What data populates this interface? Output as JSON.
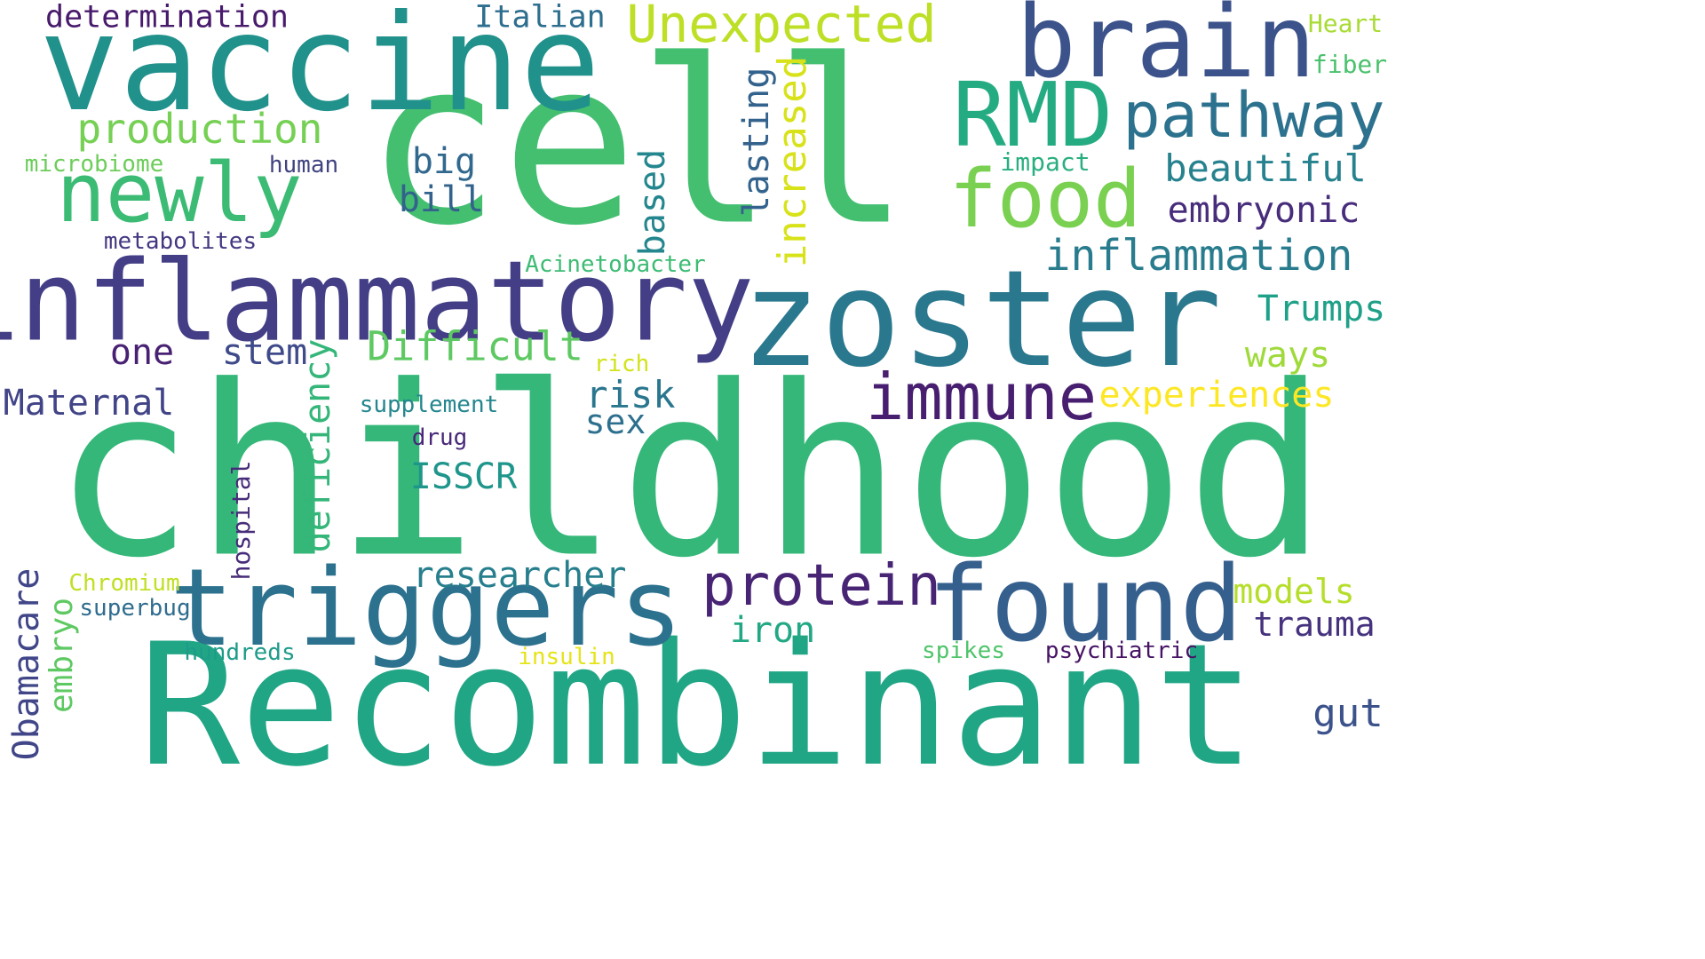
{
  "words": {
    "childhood": {
      "text": "childhood",
      "color": "#35b779"
    },
    "cell": {
      "text": "cell",
      "color": "#44bf70"
    },
    "recombinant": {
      "text": "Recombinant",
      "color": "#21a685"
    },
    "zoster": {
      "text": "zoster",
      "color": "#2a788e"
    },
    "vaccine": {
      "text": "vaccine",
      "color": "#21918c"
    },
    "inflammatory": {
      "text": "inflammatory",
      "color": "#433e85"
    },
    "triggers": {
      "text": "triggers",
      "color": "#2c728e"
    },
    "found": {
      "text": "found",
      "color": "#355f8d"
    },
    "brain": {
      "text": "brain",
      "color": "#3b528b"
    },
    "newly": {
      "text": "newly",
      "color": "#3cbb75"
    },
    "rmd": {
      "text": "RMD",
      "color": "#25ab82"
    },
    "food": {
      "text": "food",
      "color": "#7ad151"
    },
    "pathway": {
      "text": "pathway",
      "color": "#2c728e"
    },
    "immune": {
      "text": "immune",
      "color": "#481f70"
    },
    "protein": {
      "text": "protein",
      "color": "#482475"
    },
    "unexpected": {
      "text": "Unexpected",
      "color": "#bddf26"
    },
    "production": {
      "text": "production",
      "color": "#75d054"
    },
    "inflammation": {
      "text": "inflammation",
      "color": "#287c8e"
    },
    "beautiful": {
      "text": "beautiful",
      "color": "#26828e"
    },
    "embryonic": {
      "text": "embryonic",
      "color": "#472d7b"
    },
    "difficult": {
      "text": "Difficult",
      "color": "#5ec962"
    },
    "experiences": {
      "text": "experiences",
      "color": "#fde725"
    },
    "trumps": {
      "text": "Trumps",
      "color": "#1fa088"
    },
    "ways": {
      "text": "ways",
      "color": "#9fda3a"
    },
    "maternal": {
      "text": "Maternal",
      "color": "#414487"
    },
    "researcher": {
      "text": "researcher",
      "color": "#277f8e"
    },
    "risk": {
      "text": "risk",
      "color": "#2a768e"
    },
    "sex": {
      "text": "sex",
      "color": "#2d708e"
    },
    "big": {
      "text": "big",
      "color": "#31688e"
    },
    "bill": {
      "text": "bill",
      "color": "#33638d"
    },
    "isscr": {
      "text": "ISSCR",
      "color": "#1f968b"
    },
    "one": {
      "text": "one",
      "color": "#482173"
    },
    "stem": {
      "text": "stem",
      "color": "#3e4a89"
    },
    "models": {
      "text": "models",
      "color": "#b5de2b"
    },
    "trauma": {
      "text": "trauma",
      "color": "#46327e"
    },
    "gut": {
      "text": "gut",
      "color": "#3b528b"
    },
    "iron": {
      "text": "iron",
      "color": "#22a884"
    },
    "determination": {
      "text": "determination",
      "color": "#481a6c"
    },
    "italian": {
      "text": "Italian",
      "color": "#2e6e8e"
    },
    "heart": {
      "text": "Heart",
      "color": "#a8db34"
    },
    "fiber": {
      "text": "fiber",
      "color": "#4ac16d"
    },
    "impact": {
      "text": "impact",
      "color": "#29af7f"
    },
    "microbiome": {
      "text": "microbiome",
      "color": "#6ccd5a"
    },
    "human": {
      "text": "human",
      "color": "#40437f"
    },
    "metabolites": {
      "text": "metabolites",
      "color": "#453882"
    },
    "acinetobacter": {
      "text": "Acinetobacter",
      "color": "#3dbc74"
    },
    "rich": {
      "text": "rich",
      "color": "#d2e21b"
    },
    "supplement": {
      "text": "supplement",
      "color": "#24868e"
    },
    "drug": {
      "text": "drug",
      "color": "#482878"
    },
    "chromium": {
      "text": "Chromium",
      "color": "#c2df23"
    },
    "superbug": {
      "text": "superbug",
      "color": "#2f6c8e"
    },
    "hundreds": {
      "text": "hundreds",
      "color": "#1e9b8a"
    },
    "insulin": {
      "text": "insulin",
      "color": "#e5e419"
    },
    "spikes": {
      "text": "spikes",
      "color": "#4fc46a"
    },
    "psychiatric": {
      "text": "psychiatric",
      "color": "#471365"
    },
    "increased": {
      "text": "increased",
      "color": "#d8e219"
    },
    "lasting": {
      "text": "lasting",
      "color": "#33638d"
    },
    "based": {
      "text": "based",
      "color": "#24868e"
    },
    "deficiency": {
      "text": "deficiency",
      "color": "#34b679"
    },
    "hospital": {
      "text": "hospital",
      "color": "#472c7a"
    },
    "obamacare": {
      "text": "Obamacare",
      "color": "#404688"
    },
    "embryo": {
      "text": "embryo",
      "color": "#5ec962"
    }
  }
}
